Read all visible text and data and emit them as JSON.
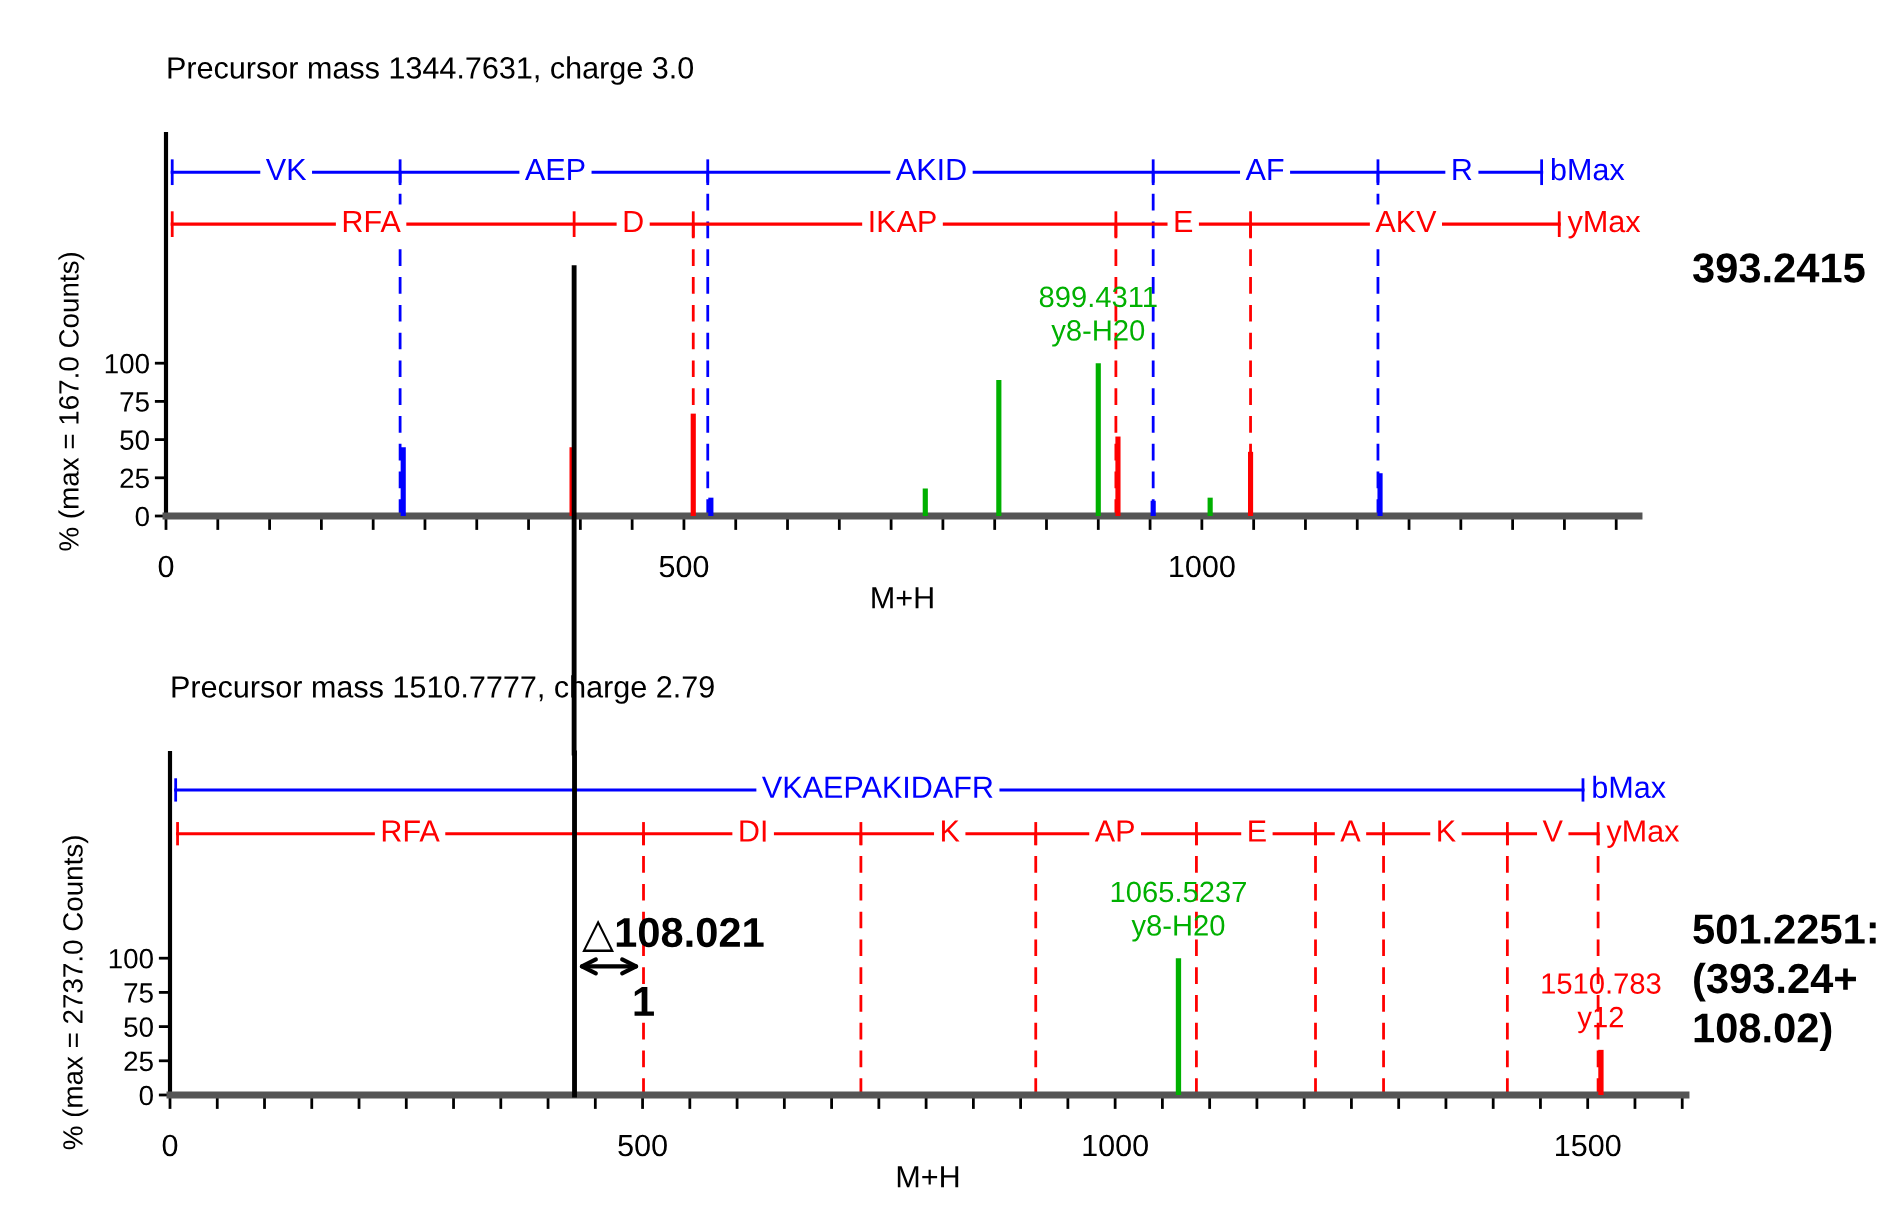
{
  "chart_data": [
    {
      "type": "bar",
      "title": "Precursor mass 1344.7631, charge 3.0",
      "xlabel": "M+H",
      "ylabel": "% (max = 167.0 Counts)",
      "xlim": [
        0,
        1422
      ],
      "ylim": [
        0,
        250
      ],
      "yticks": [
        0,
        25,
        50,
        75,
        100
      ],
      "xticks": [
        0,
        {
          "value": 50,
          "label": null
        },
        {
          "value": 100,
          "label": null
        },
        {
          "value": 150,
          "label": null
        },
        {
          "value": 200,
          "label": null
        },
        {
          "value": 250,
          "label": null
        },
        {
          "value": 300,
          "label": null
        },
        {
          "value": 350,
          "label": null
        },
        {
          "value": 400,
          "label": null
        },
        {
          "value": 450,
          "label": null
        },
        500,
        {
          "value": 550,
          "label": null
        },
        {
          "value": 600,
          "label": null
        },
        {
          "value": 650,
          "label": null
        },
        {
          "value": 700,
          "label": null
        },
        {
          "value": 750,
          "label": null
        },
        {
          "value": 800,
          "label": null
        },
        {
          "value": 850,
          "label": null
        },
        {
          "value": 900,
          "label": null
        },
        {
          "value": 950,
          "label": null
        },
        1000,
        {
          "value": 1050,
          "label": null
        },
        {
          "value": 1100,
          "label": null
        },
        {
          "value": 1150,
          "label": null
        },
        {
          "value": 1200,
          "label": null
        },
        {
          "value": 1250,
          "label": null
        },
        {
          "value": 1300,
          "label": null
        },
        {
          "value": 1350,
          "label": null
        },
        {
          "value": 1400,
          "label": null
        }
      ],
      "series": [
        {
          "color": "#0000ff",
          "x": [
            229,
            526,
            953,
            1172
          ],
          "values": [
            45,
            12,
            10,
            28
          ]
        },
        {
          "color": "#ff0000",
          "x": [
            392,
            509,
            919,
            1047
          ],
          "values": [
            45,
            67,
            52,
            42
          ]
        },
        {
          "color": "#00b000",
          "x": [
            733,
            804,
            900,
            1008
          ],
          "values": [
            18,
            89,
            100,
            12
          ]
        },
        {
          "type": "line",
          "color": "#0000ff",
          "x": [
            6,
            226,
            523,
            953,
            1170,
            1328
          ],
          "values": [
            225,
            225,
            225,
            225,
            225,
            225
          ]
        },
        {
          "type": "line",
          "color": "#ff0000",
          "x": [
            6,
            394,
            509,
            917,
            1047,
            1345
          ],
          "values": [
            191,
            191,
            191,
            191,
            191,
            191
          ]
        }
      ],
      "ref_lines": [
        {
          "axis": "x",
          "value": 226,
          "color": "#0000ff",
          "line_style": "dashed"
        },
        {
          "axis": "x",
          "value": 523,
          "color": "#0000ff",
          "line_style": "dashed"
        },
        {
          "axis": "x",
          "value": 953,
          "color": "#0000ff",
          "line_style": "dashed"
        },
        {
          "axis": "x",
          "value": 1170,
          "color": "#0000ff",
          "line_style": "dashed"
        },
        {
          "axis": "x",
          "value": 509,
          "color": "#ff0000",
          "line_style": "dashed"
        },
        {
          "axis": "x",
          "value": 917,
          "color": "#ff0000",
          "line_style": "dashed"
        },
        {
          "axis": "x",
          "value": 1047,
          "color": "#ff0000",
          "line_style": "dashed"
        },
        {
          "axis": "x",
          "value": 394,
          "color": "#000000",
          "line_style": "solid"
        }
      ],
      "annotations": [
        {
          "text": "VK",
          "x": 116,
          "y": 225
        },
        {
          "text": "AEP",
          "x": 376,
          "y": 225
        },
        {
          "text": "AKID",
          "x": 739,
          "y": 225
        },
        {
          "text": "AF",
          "x": 1061,
          "y": 225
        },
        {
          "text": "R",
          "x": 1251,
          "y": 225
        },
        {
          "text": "bMax",
          "x": 1328,
          "y": 225
        },
        {
          "text": "RFA",
          "x": 198,
          "y": 191
        },
        {
          "text": "D",
          "x": 451,
          "y": 191
        },
        {
          "text": "IKAP",
          "x": 711,
          "y": 191
        },
        {
          "text": "E",
          "x": 982,
          "y": 191
        },
        {
          "text": "AKV",
          "x": 1197,
          "y": 191
        },
        {
          "text": "yMax",
          "x": 1345,
          "y": 191
        },
        {
          "text": "899.4311\ny8-H20",
          "x": 900,
          "y": 100
        },
        "393.2415"
      ]
    },
    {
      "type": "bar",
      "title": "Precursor mass 1510.7777, charge 2.79",
      "xlabel": "M+H",
      "ylabel": "% (max = 2737.0 Counts)",
      "xlim": [
        0,
        1604
      ],
      "ylim": [
        0,
        250
      ],
      "yticks": [
        0,
        25,
        50,
        75,
        100
      ],
      "xticks": [
        0,
        {
          "value": 50,
          "label": null
        },
        {
          "value": 100,
          "label": null
        },
        {
          "value": 150,
          "label": null
        },
        {
          "value": 200,
          "label": null
        },
        {
          "value": 250,
          "label": null
        },
        {
          "value": 300,
          "label": null
        },
        {
          "value": 350,
          "label": null
        },
        {
          "value": 400,
          "label": null
        },
        {
          "value": 450,
          "label": null
        },
        500,
        {
          "value": 550,
          "label": null
        },
        {
          "value": 600,
          "label": null
        },
        {
          "value": 650,
          "label": null
        },
        {
          "value": 700,
          "label": null
        },
        {
          "value": 750,
          "label": null
        },
        {
          "value": 800,
          "label": null
        },
        {
          "value": 850,
          "label": null
        },
        {
          "value": 900,
          "label": null
        },
        {
          "value": 950,
          "label": null
        },
        1000,
        {
          "value": 1050,
          "label": null
        },
        {
          "value": 1100,
          "label": null
        },
        {
          "value": 1150,
          "label": null
        },
        {
          "value": 1200,
          "label": null
        },
        {
          "value": 1250,
          "label": null
        },
        {
          "value": 1300,
          "label": null
        },
        {
          "value": 1350,
          "label": null
        },
        {
          "value": 1400,
          "label": null
        },
        {
          "value": 1450,
          "label": null
        },
        1500,
        {
          "value": 1550,
          "label": null
        },
        {
          "value": 1600,
          "label": null
        }
      ],
      "series": [
        {
          "color": "#00b000",
          "x": [
            1067
          ],
          "values": [
            100
          ]
        },
        {
          "color": "#ff0000",
          "x": [
            1514
          ],
          "values": [
            33
          ]
        },
        {
          "type": "line",
          "color": "#0000ff",
          "x": [
            6,
            1495
          ],
          "values": [
            223,
            223
          ]
        },
        {
          "type": "line",
          "color": "#ff0000",
          "x": [
            8,
            501,
            731,
            916,
            1086,
            1212,
            1284,
            1415,
            1511
          ],
          "values": [
            191,
            191,
            191,
            191,
            191,
            191,
            191,
            191,
            191
          ]
        }
      ],
      "ref_lines": [
        {
          "axis": "x",
          "value": 501,
          "color": "#ff0000",
          "line_style": "dashed"
        },
        {
          "axis": "x",
          "value": 731,
          "color": "#ff0000",
          "line_style": "dashed"
        },
        {
          "axis": "x",
          "value": 916,
          "color": "#ff0000",
          "line_style": "dashed"
        },
        {
          "axis": "x",
          "value": 1086,
          "color": "#ff0000",
          "line_style": "dashed"
        },
        {
          "axis": "x",
          "value": 1212,
          "color": "#ff0000",
          "line_style": "dashed"
        },
        {
          "axis": "x",
          "value": 1284,
          "color": "#ff0000",
          "line_style": "dashed"
        },
        {
          "axis": "x",
          "value": 1415,
          "color": "#ff0000",
          "line_style": "dashed"
        },
        {
          "axis": "x",
          "value": 1511,
          "color": "#ff0000",
          "line_style": "dashed"
        },
        {
          "axis": "x",
          "value": 428,
          "color": "#000000",
          "line_style": "solid"
        }
      ],
      "annotations": [
        {
          "text": "VKAEPAKIDAFR",
          "x": 749,
          "y": 223
        },
        {
          "text": "bMax",
          "x": 1495,
          "y": 223
        },
        {
          "text": "RFA",
          "x": 254,
          "y": 191
        },
        {
          "text": "DI",
          "x": 617,
          "y": 191
        },
        {
          "text": "K",
          "x": 825,
          "y": 191
        },
        {
          "text": "AP",
          "x": 1000,
          "y": 191
        },
        {
          "text": "E",
          "x": 1150,
          "y": 191
        },
        {
          "text": "A",
          "x": 1249,
          "y": 191
        },
        {
          "text": "K",
          "x": 1350,
          "y": 191
        },
        {
          "text": "V",
          "x": 1463,
          "y": 191
        },
        {
          "text": "yMax",
          "x": 1511,
          "y": 191
        },
        {
          "text": "1065.5237\ny8-H20",
          "x": 1067,
          "y": 100
        },
        {
          "text": "1510.783\ny12",
          "x": 1514,
          "y": 33
        },
        {
          "text": "△108.021",
          "x": 501,
          "y": 94
        },
        {
          "text": "1",
          "x": 501,
          "y": 80
        },
        "501.2251:\n(393.24+\n108.02)"
      ]
    }
  ]
}
